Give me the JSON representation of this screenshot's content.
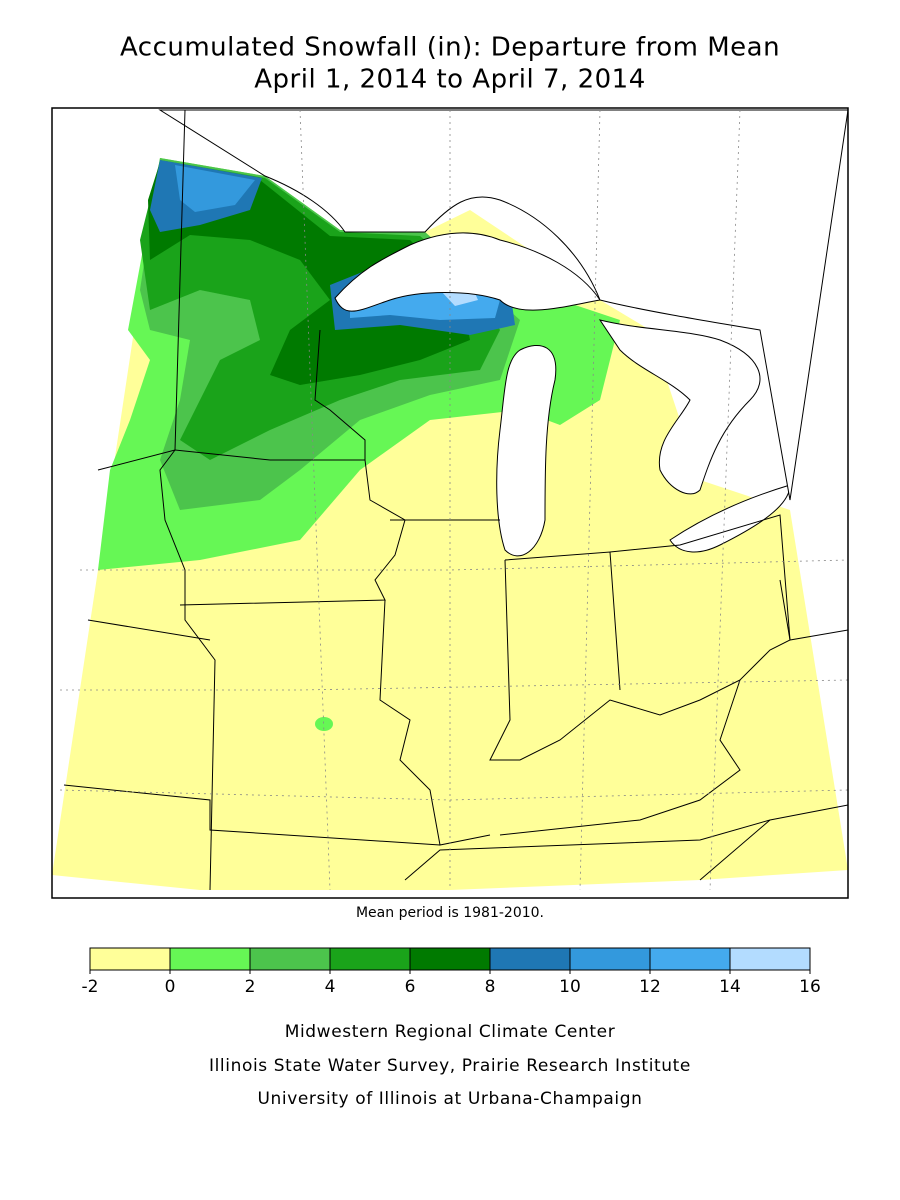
{
  "header": {
    "title": "Accumulated Snowfall (in): Departure from Mean",
    "subtitle": "April 1, 2014 to April 7, 2014"
  },
  "note": "Mean period is 1981-2010.",
  "legend": {
    "ticks": [
      -2,
      0,
      2,
      4,
      6,
      8,
      10,
      12,
      14,
      16
    ],
    "colors": [
      "#ffff99",
      "#66f755",
      "#4cc44c",
      "#1aa31a",
      "#007a00",
      "#1f77b4",
      "#3399dd",
      "#44aaee",
      "#b3dcff"
    ]
  },
  "credits": [
    "Midwestern Regional Climate Center",
    "Illinois State Water Survey, Prairie Research Institute",
    "University of Illinois at Urbana-Champaign"
  ]
}
